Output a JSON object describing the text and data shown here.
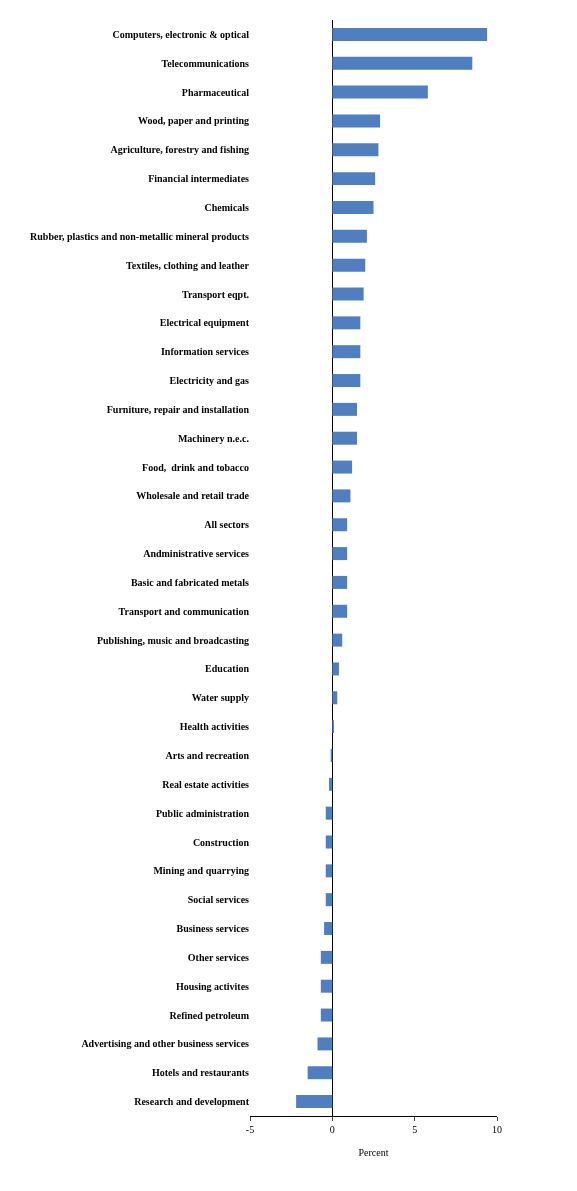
{
  "chart_data": {
    "type": "bar",
    "orientation": "horizontal",
    "xlabel": "Percent",
    "categories": [
      "Computers, electronic & optical",
      "Telecommunications",
      "Pharmaceutical",
      "Wood, paper and printing",
      "Agriculture, forestry and fishing",
      "Financial intermediates",
      "Chemicals",
      "Rubber, plastics and non-metallic mineral products",
      "Textiles, clothing and leather",
      "Transport eqpt.",
      "Electrical equipment",
      "Information services",
      "Electricity and gas",
      "Furniture, repair and installation",
      "Machinery n.e.c.",
      "Food,  drink and tobacco",
      "Wholesale and retail trade",
      "All sectors",
      "Andministrative services",
      "Basic and fabricated metals",
      "Transport and communication",
      "Publishing, music and broadcasting",
      "Education",
      "Water supply",
      "Health activities",
      "Arts and recreation",
      "Real estate activities",
      "Public administration",
      "Construction",
      "Mining and quarrying",
      "Social services",
      "Business services",
      "Other services",
      "Housing activites",
      "Refined petroleum",
      "Advertising and other business services",
      "Hotels and restaurants",
      "Research and development"
    ],
    "values": [
      9.4,
      8.5,
      5.8,
      2.9,
      2.8,
      2.6,
      2.5,
      2.1,
      2.0,
      1.9,
      1.7,
      1.7,
      1.7,
      1.5,
      1.5,
      1.2,
      1.1,
      0.9,
      0.9,
      0.9,
      0.9,
      0.6,
      0.4,
      0.3,
      0.1,
      -0.1,
      -0.2,
      -0.4,
      -0.4,
      -0.4,
      -0.4,
      -0.5,
      -0.7,
      -0.7,
      -0.7,
      -0.9,
      -1.5,
      -2.2
    ],
    "color": "#4f7fc0",
    "xlim": [
      -5,
      10
    ],
    "xticks": [
      -5,
      0,
      5,
      10
    ]
  }
}
